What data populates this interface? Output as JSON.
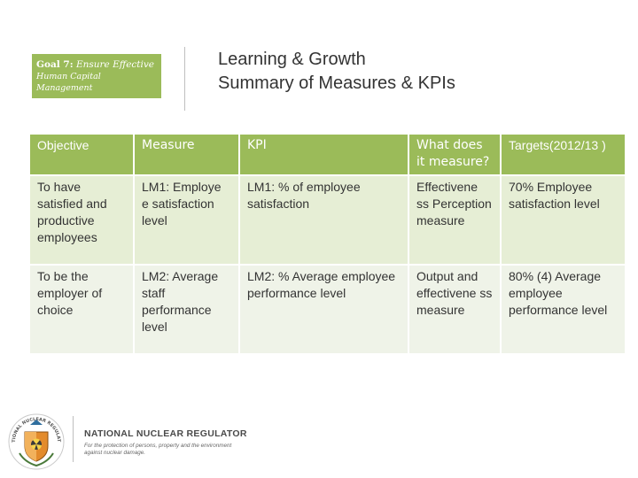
{
  "goal": {
    "prefix": "Goal 7:",
    "line1": "Ensure Effective",
    "line2": "Human Capital Management"
  },
  "title": {
    "line1": "Learning & Growth",
    "line2": "Summary of Measures & KPIs"
  },
  "table": {
    "headers": [
      "Objective",
      "Measure",
      "KPI",
      "What does it measure?",
      "Targets(2012/13 )"
    ],
    "rows": [
      [
        "To have satisfied and productive employees",
        "LM1: Employe e satisfaction level",
        "LM1: % of employee satisfaction",
        "Effectivene ss Perception measure",
        "70% Employee satisfaction level"
      ],
      [
        "To be the employer of choice",
        "LM2: Average staff performance level",
        "LM2: % Average employee performance level",
        "Output and effectivene ss measure",
        "80% (4) Average employee performance level"
      ]
    ]
  },
  "footer": {
    "org_name": "NATIONAL NUCLEAR REGULATOR",
    "tagline": "For the protection of persons, property and the environment against nuclear damage.",
    "emblem_text": "NATIONAL NUCLEAR REGULATOR"
  },
  "colors": {
    "header_green": "#9bbb59",
    "row1_bg": "#e6eed5",
    "row2_bg": "#eff3e8",
    "text": "#333333"
  }
}
